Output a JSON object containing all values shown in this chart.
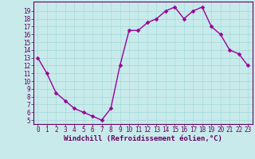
{
  "x": [
    0,
    1,
    2,
    3,
    4,
    5,
    6,
    7,
    8,
    9,
    10,
    11,
    12,
    13,
    14,
    15,
    16,
    17,
    18,
    19,
    20,
    21,
    22,
    23
  ],
  "y": [
    13,
    11,
    8.5,
    7.5,
    6.5,
    6,
    5.5,
    5,
    6.5,
    12,
    16.5,
    16.5,
    17.5,
    18,
    19,
    19.5,
    18,
    19,
    19.5,
    17,
    16,
    14,
    13.5,
    12
  ],
  "line_color": "#990099",
  "marker_color": "#990099",
  "bg_color": "#c8eaea",
  "grid_color": "#aadddd",
  "xlabel": "Windchill (Refroidissement éolien,°C)",
  "xlim": [
    -0.5,
    23.5
  ],
  "ylim": [
    4.5,
    20.2
  ],
  "yticks": [
    5,
    6,
    7,
    8,
    9,
    10,
    11,
    12,
    13,
    14,
    15,
    16,
    17,
    18,
    19
  ],
  "xticks": [
    0,
    1,
    2,
    3,
    4,
    5,
    6,
    7,
    8,
    9,
    10,
    11,
    12,
    13,
    14,
    15,
    16,
    17,
    18,
    19,
    20,
    21,
    22,
    23
  ],
  "tick_fontsize": 5.5,
  "xlabel_fontsize": 6.5,
  "marker_size": 2.5,
  "line_width": 1.0
}
